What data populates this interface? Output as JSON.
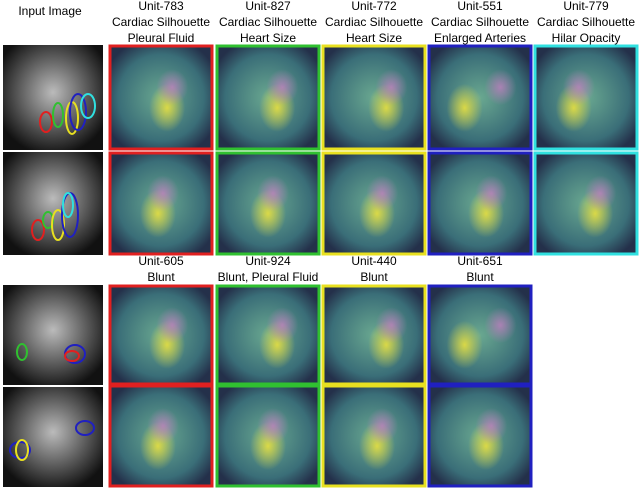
{
  "input_label": "Input Image",
  "top_row": [
    {
      "lines": [
        "Unit-783",
        "Cardiac Silhouette",
        "Pleural Fluid"
      ],
      "color": "#e02020"
    },
    {
      "lines": [
        "Unit-827",
        "Cardiac Silhouette",
        "Heart Size"
      ],
      "color": "#30c030"
    },
    {
      "lines": [
        "Unit-772",
        "Cardiac Silhouette",
        "Heart Size"
      ],
      "color": "#e8e020"
    },
    {
      "lines": [
        "Unit-551",
        "Cardiac Silhouette",
        "Enlarged Arteries"
      ],
      "color": "#2020c0"
    },
    {
      "lines": [
        "Unit-779",
        "Cardiac Silhouette",
        "Hilar Opacity"
      ],
      "color": "#30e0e0"
    }
  ],
  "bottom_row": [
    {
      "lines": [
        "Unit-605",
        "Blunt"
      ],
      "color": "#e02020"
    },
    {
      "lines": [
        "Unit-924",
        "Blunt, Pleural Fluid"
      ],
      "color": "#30c030"
    },
    {
      "lines": [
        "Unit-440",
        "Blunt"
      ],
      "color": "#e8e020"
    },
    {
      "lines": [
        "Unit-651",
        "Blunt"
      ],
      "color": "#2020c0"
    }
  ]
}
